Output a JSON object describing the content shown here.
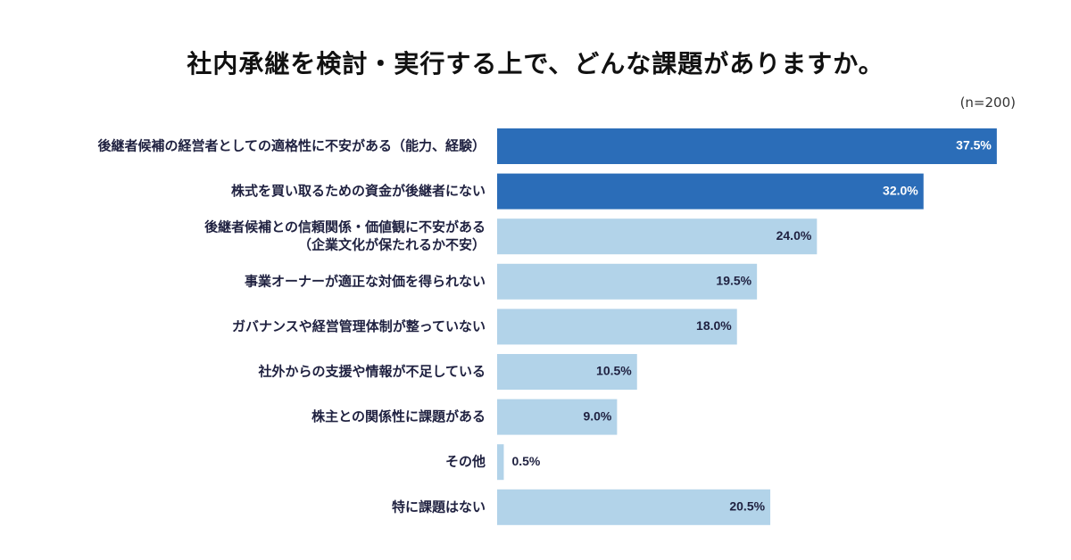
{
  "header": {
    "title": "社内承継を検討・実行する上で、どんな課題がありますか。",
    "sample_size": "(n=200)"
  },
  "colors": {
    "highlight_bar": "#2b6db8",
    "default_bar": "#b2d3e9",
    "highlight_label": "#ffffff",
    "default_label": "#1f2140"
  },
  "chart_data": {
    "type": "bar",
    "orientation": "horizontal",
    "title": "社内承継を検討・実行する上で、どんな課題がありますか。",
    "categories": [
      [
        "後継者候補の経営者としての適格性に不安がある（能力、経験）"
      ],
      [
        "株式を買い取るための資金が後継者にない"
      ],
      [
        "後継者候補との信頼関係・価値観に不安がある",
        "（企業文化が保たれるか不安）"
      ],
      [
        "事業オーナーが適正な対価を得られない"
      ],
      [
        "ガバナンスや経営管理体制が整っていない"
      ],
      [
        "社外からの支援や情報が不足している"
      ],
      [
        "株主との関係性に課題がある"
      ],
      [
        "その他"
      ],
      [
        "特に課題はない"
      ]
    ],
    "values": [
      37.5,
      32.0,
      24.0,
      19.5,
      18.0,
      10.5,
      9.0,
      0.5,
      20.5
    ],
    "value_labels": [
      "37.5%",
      "32.0%",
      "24.0%",
      "19.5%",
      "18.0%",
      "10.5%",
      "9.0%",
      "0.5%",
      "20.5%"
    ],
    "highlighted": [
      true,
      true,
      false,
      false,
      false,
      false,
      false,
      false,
      false
    ],
    "unit": "%",
    "xlim": [
      0,
      40
    ],
    "grid": false,
    "legend": "none"
  }
}
